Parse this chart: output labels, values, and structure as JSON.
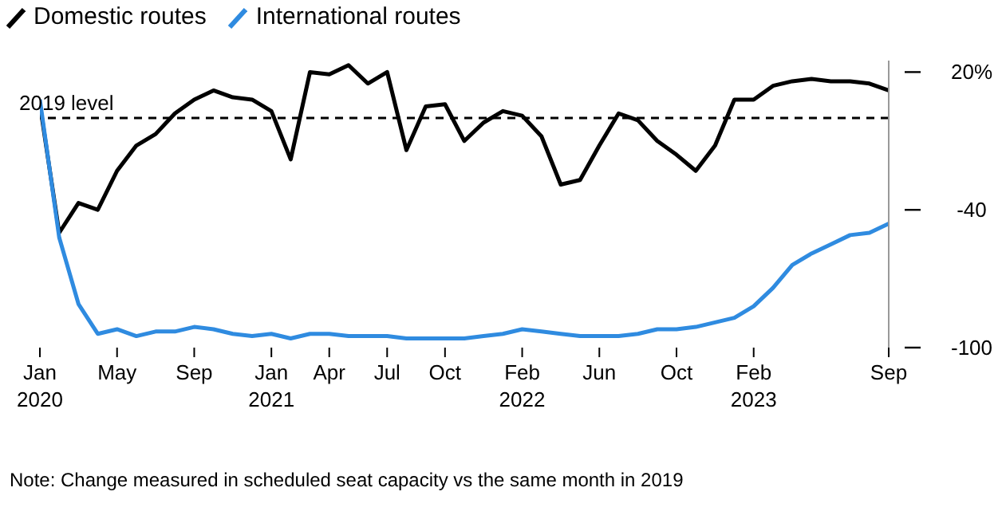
{
  "chart_data": {
    "type": "line",
    "x": [
      "2020-01",
      "2020-02",
      "2020-03",
      "2020-04",
      "2020-05",
      "2020-06",
      "2020-07",
      "2020-08",
      "2020-09",
      "2020-10",
      "2020-11",
      "2020-12",
      "2021-01",
      "2021-02",
      "2021-03",
      "2021-04",
      "2021-05",
      "2021-06",
      "2021-07",
      "2021-08",
      "2021-09",
      "2021-10",
      "2021-11",
      "2021-12",
      "2022-01",
      "2022-02",
      "2022-03",
      "2022-04",
      "2022-05",
      "2022-06",
      "2022-07",
      "2022-08",
      "2022-09",
      "2022-10",
      "2022-11",
      "2022-12",
      "2023-01",
      "2023-02",
      "2023-03",
      "2023-04",
      "2023-05",
      "2023-06",
      "2023-07",
      "2023-08",
      "2023-09"
    ],
    "series": [
      {
        "name": "Domestic routes",
        "color": "#000000",
        "values": [
          6,
          -50,
          -37,
          -40,
          -23,
          -12,
          -7,
          2,
          8,
          12,
          9,
          8,
          3,
          -18,
          20,
          19,
          23,
          15,
          20,
          -14,
          5,
          6,
          -10,
          -2,
          3,
          1,
          -8,
          -29,
          -27,
          -12,
          2,
          -1,
          -10,
          -16,
          -23,
          -12,
          8,
          8,
          14,
          16,
          17,
          16,
          16,
          15,
          12
        ]
      },
      {
        "name": "International routes",
        "color": "#2f8be0",
        "values": [
          8,
          -52,
          -81,
          -94,
          -92,
          -95,
          -93,
          -93,
          -91,
          -92,
          -94,
          -95,
          -94,
          -96,
          -94,
          -94,
          -95,
          -95,
          -95,
          -96,
          -96,
          -96,
          -96,
          -95,
          -94,
          -92,
          -93,
          -94,
          -95,
          -95,
          -95,
          -94,
          -92,
          -92,
          -91,
          -89,
          -87,
          -82,
          -74,
          -64,
          -59,
          -55,
          -51,
          -50,
          -46
        ]
      }
    ],
    "xlim": [
      "2020-01",
      "2023-09"
    ],
    "xticks": [
      {
        "value": "2020-01",
        "label": "Jan 2020"
      },
      {
        "value": "2020-05",
        "label": "May"
      },
      {
        "value": "2020-09",
        "label": "Sep"
      },
      {
        "value": "2021-01",
        "label": "Jan 2021"
      },
      {
        "value": "2021-04",
        "label": "Apr"
      },
      {
        "value": "2021-07",
        "label": "Jul"
      },
      {
        "value": "2021-10",
        "label": "Oct"
      },
      {
        "value": "2022-02",
        "label": "Feb 2022"
      },
      {
        "value": "2022-06",
        "label": "Jun"
      },
      {
        "value": "2022-10",
        "label": "Oct"
      },
      {
        "value": "2023-02",
        "label": "Feb 2023"
      },
      {
        "value": "2023-09",
        "label": "Sep"
      }
    ],
    "ylim": [
      -100,
      25
    ],
    "yticks": [
      {
        "value": 20,
        "label": "20%"
      },
      -40,
      -100
    ],
    "ref_lines": [
      {
        "axis": "y",
        "value": 0,
        "label": "2019 level",
        "line_style": "dashed",
        "color": "#000000"
      }
    ],
    "grid": false,
    "legend": "top left",
    "marker": "none",
    "line_style": "solid",
    "annotations": [
      "Note: Change measured in scheduled seat capacity vs the same month in 2019"
    ]
  }
}
